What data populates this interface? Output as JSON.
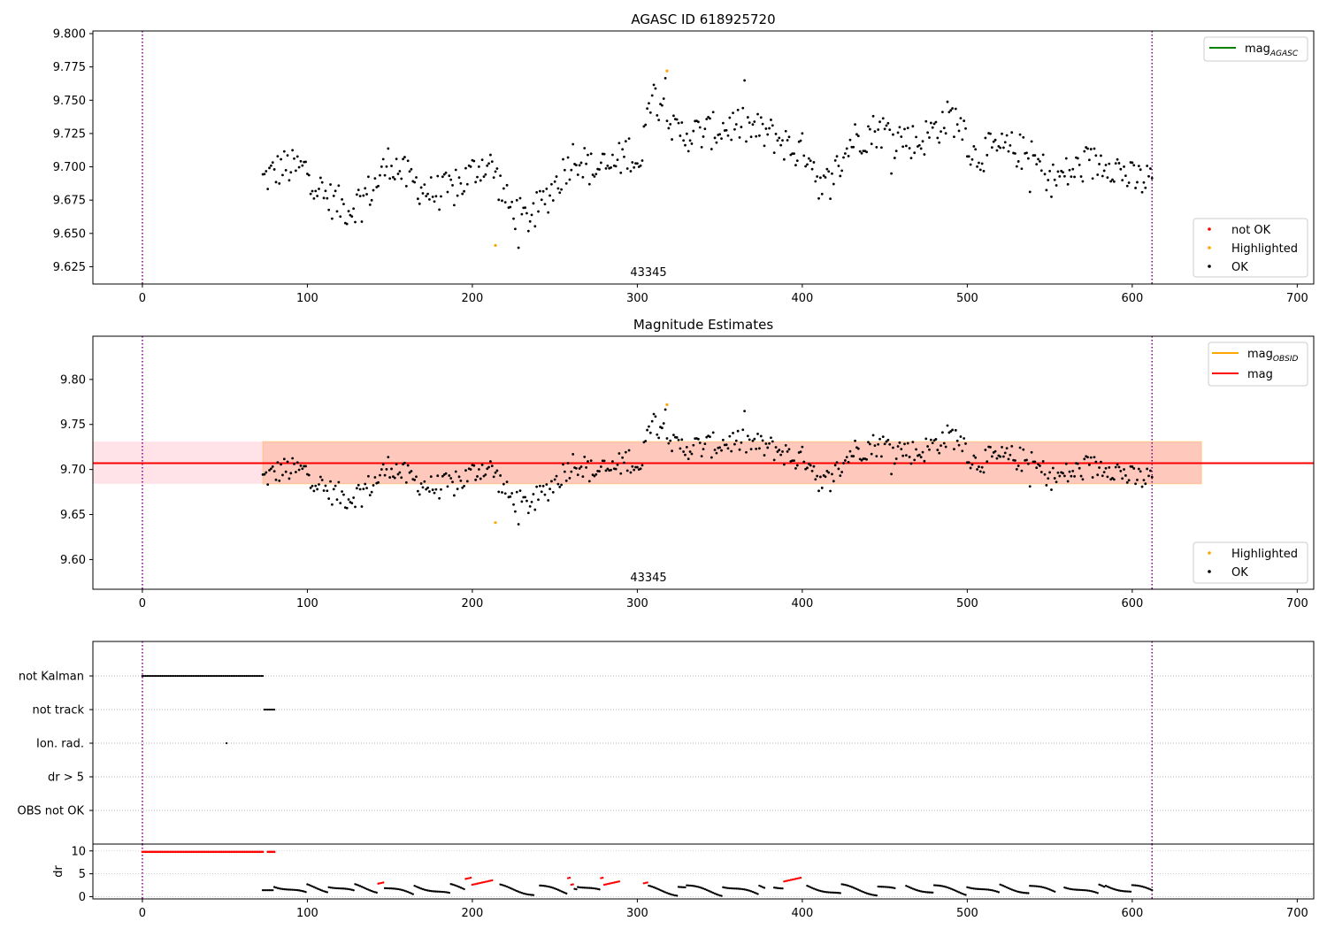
{
  "colors": {
    "ok": "#000000",
    "highlighted": "#ffa500",
    "not_ok": "#ff0000",
    "agasc_line": "#008000",
    "obsid_line": "#ffa500",
    "mag_line": "#ff0000",
    "vline": "#800080",
    "band_outer": "#ffc0cb",
    "band_inner": "#ffa07a"
  },
  "chart_data": [
    {
      "type": "scatter",
      "title": "AGASC ID 618925720",
      "xlim": [
        -30,
        710
      ],
      "ylim": [
        9.612,
        9.802
      ],
      "xticks": [
        "0",
        "100",
        "200",
        "300",
        "400",
        "500",
        "600",
        "700"
      ],
      "yticks": [
        "9.625",
        "9.650",
        "9.675",
        "9.700",
        "9.725",
        "9.750",
        "9.775",
        "9.800"
      ],
      "annotation": {
        "x": 305,
        "text": "43345"
      },
      "vlines": [
        0,
        612
      ],
      "legend_lines": [
        {
          "label": "mag",
          "sub": "AGASC",
          "color": "agasc_line"
        }
      ],
      "legend_points": [
        {
          "label": "not OK",
          "color": "not_ok"
        },
        {
          "label": "Highlighted",
          "color": "highlighted"
        },
        {
          "label": "OK",
          "color": "ok"
        }
      ],
      "highlighted_points": [
        [
          214,
          9.641
        ],
        [
          318,
          9.772
        ]
      ],
      "ok_series": "mag",
      "legend_position": "upper right / lower right"
    },
    {
      "type": "scatter",
      "title": "Magnitude Estimates",
      "xlim": [
        -30,
        710
      ],
      "ylim": [
        9.567,
        9.848
      ],
      "xticks": [
        "0",
        "100",
        "200",
        "300",
        "400",
        "500",
        "600",
        "700"
      ],
      "yticks": [
        "9.60",
        "9.65",
        "9.70",
        "9.75",
        "9.80"
      ],
      "annotation": {
        "x": 305,
        "text": "43345"
      },
      "vlines": [
        0,
        612
      ],
      "mag_line": 9.707,
      "band_outer": {
        "x": [
          -30,
          642
        ],
        "y": [
          9.684,
          9.731
        ]
      },
      "band_inner": {
        "x": [
          73,
          642
        ],
        "y": [
          9.684,
          9.731
        ]
      },
      "legend_lines": [
        {
          "label": "mag",
          "sub": "OBSID",
          "color": "obsid_line"
        },
        {
          "label": "mag",
          "sub": "",
          "color": "mag_line"
        }
      ],
      "legend_points": [
        {
          "label": "Highlighted",
          "color": "highlighted"
        },
        {
          "label": "OK",
          "color": "ok"
        }
      ],
      "highlighted_points": [
        [
          214,
          9.641
        ],
        [
          318,
          9.772
        ]
      ],
      "ok_series": "mag"
    },
    {
      "type": "scatter",
      "title": "",
      "xlim": [
        -30,
        710
      ],
      "categories": [
        "not Kalman",
        "not track",
        "Ion. rad.",
        "dr > 5",
        "OBS not OK"
      ],
      "flags": {
        "not Kalman": {
          "from": 0,
          "to": 73
        },
        "not track": {
          "from": 74,
          "to": 80
        },
        "Ion. rad.": {
          "from": 51,
          "to": 51
        }
      },
      "vlines": [
        0,
        612
      ]
    },
    {
      "type": "scatter",
      "title": "",
      "ylabel": "dr",
      "xlim": [
        -30,
        710
      ],
      "ylim": [
        -0.5,
        11.5
      ],
      "xticks": [
        "0",
        "100",
        "200",
        "300",
        "400",
        "500",
        "600",
        "700"
      ],
      "yticks": [
        "0",
        "5",
        "10"
      ],
      "clipped": {
        "from": 0,
        "to": 80,
        "value": 9.8
      },
      "red_segments": [
        [
          143,
          146
        ],
        [
          196,
          213
        ],
        [
          258,
          261
        ],
        [
          278,
          292
        ],
        [
          303,
          306
        ],
        [
          389,
          400
        ]
      ],
      "gaps": [
        [
          213,
          216
        ],
        [
          238,
          240
        ],
        [
          290,
          303
        ],
        [
          378,
          382
        ],
        [
          400,
          402
        ],
        [
          457,
          462
        ],
        [
          554,
          558
        ],
        [
          613,
          700
        ]
      ],
      "vlines": [
        0,
        612
      ]
    }
  ]
}
